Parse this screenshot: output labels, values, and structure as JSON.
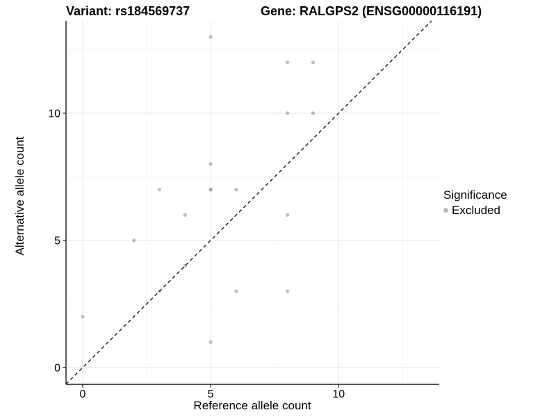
{
  "chart_data": {
    "type": "scatter",
    "title_left": "Variant: rs184569737",
    "title_right": "Gene: RALGPS2 (ENSG00000116191)",
    "xlabel": "Reference allele count",
    "ylabel": "Alternative allele count",
    "xlim": [
      -0.65,
      13.93
    ],
    "ylim": [
      -0.66,
      13.63
    ],
    "x_major_ticks": [
      0,
      5,
      10
    ],
    "y_major_ticks": [
      0,
      5,
      10
    ],
    "x_minor_gridlines": [
      2.5,
      7.5,
      12.5
    ],
    "y_minor_gridlines": [
      2.5,
      7.5,
      12.5
    ],
    "grid": true,
    "identity_line": {
      "style": "dashed",
      "equation": "y = x"
    },
    "points": [
      [
        0,
        2
      ],
      [
        2,
        5
      ],
      [
        3,
        3
      ],
      [
        3,
        7
      ],
      [
        4,
        4
      ],
      [
        4,
        6
      ],
      [
        5,
        1
      ],
      [
        5,
        7
      ],
      [
        5,
        7
      ],
      [
        5,
        8
      ],
      [
        5,
        13
      ],
      [
        6,
        3
      ],
      [
        6,
        7
      ],
      [
        8,
        3
      ],
      [
        8,
        6
      ],
      [
        8,
        10
      ],
      [
        8,
        12
      ],
      [
        9,
        10
      ],
      [
        9,
        12
      ]
    ],
    "legend": {
      "title": "Significance",
      "position": "right",
      "items": [
        {
          "label": "Excluded",
          "marker_color": "#bdbdbd"
        }
      ]
    },
    "colors": {
      "point": "#bdbdbd",
      "point_overlap_render": "#8a8a8a",
      "grid_major": "#e4e4e4",
      "grid_minor": "#f2f2f2",
      "axis_line": "#1a1a1a",
      "identity_line": "#1a1a1a",
      "text": "#000000"
    }
  }
}
